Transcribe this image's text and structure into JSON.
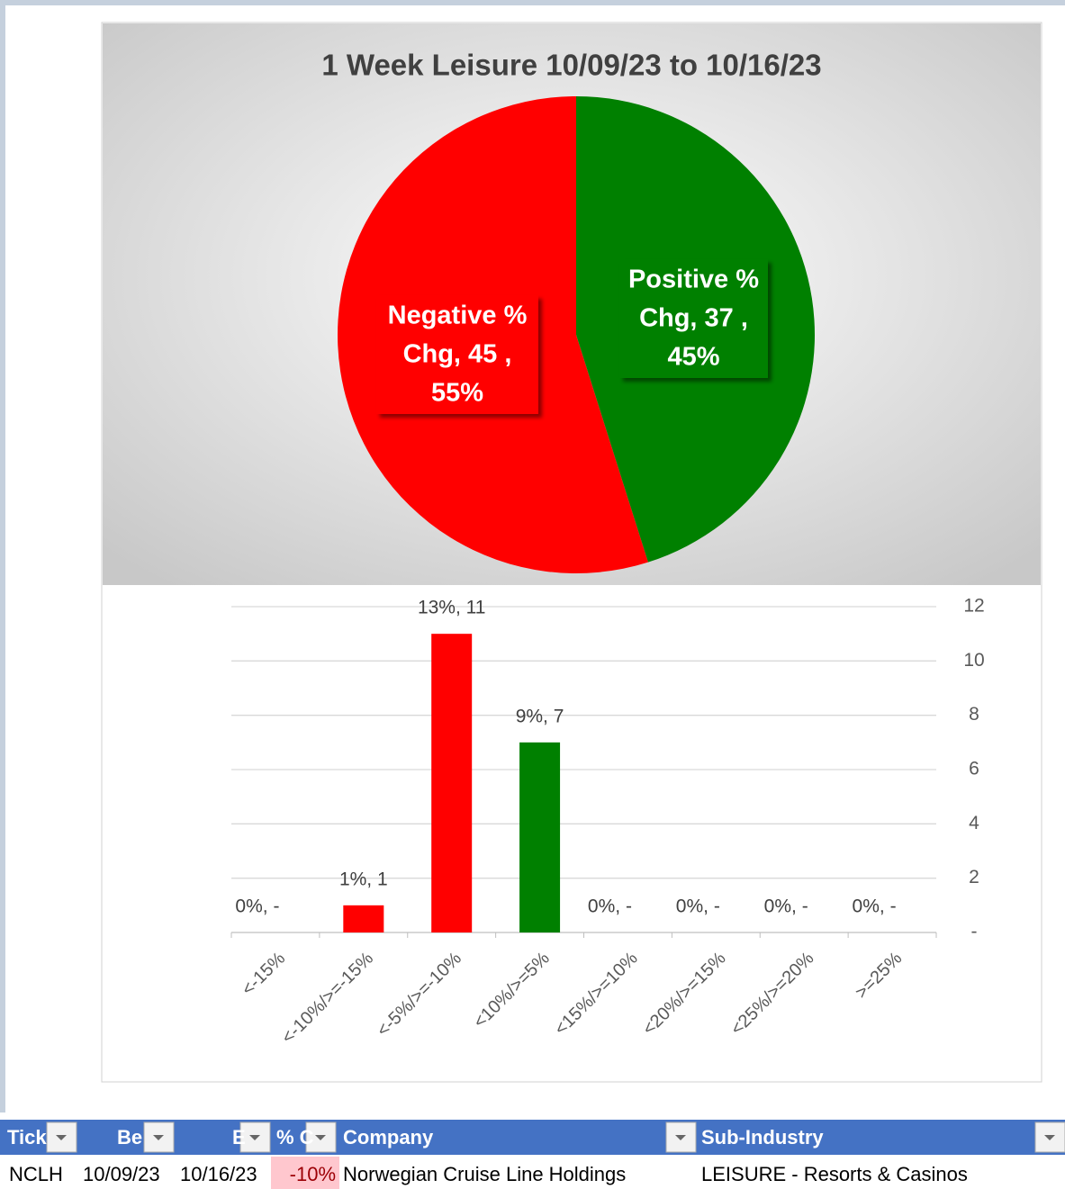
{
  "chart_data": [
    {
      "type": "pie",
      "title": "1 Week Leisure 10/09/23 to 10/16/23",
      "categories": [
        "Negative % Chg",
        "Positive % Chg"
      ],
      "values": [
        45,
        37
      ],
      "colors": [
        "#ff0000",
        "#008000"
      ],
      "data_labels": [
        [
          "Negative %",
          "Chg,  45 ,",
          "55%"
        ],
        [
          "Positive %",
          "Chg,  37 ,",
          "45%"
        ]
      ]
    },
    {
      "type": "bar",
      "categories": [
        "<-15%",
        "<-10%/>=-15%",
        "<-5%/>=-10%",
        "<10%/>=5%",
        "<15%/>=10%",
        "<20%/>=15%",
        "<25%/>=20%",
        ">=25%"
      ],
      "values": [
        0,
        1,
        11,
        7,
        0,
        0,
        0,
        0
      ],
      "value_labels": [
        "0%,  -",
        "1%,  1",
        "13%,  11",
        "9%,  7",
        "0%,  -",
        "0%,  -",
        "0%,  -",
        "0%,  -"
      ],
      "colors": [
        "#ff0000",
        "#ff0000",
        "#ff0000",
        "#008000",
        "#008000",
        "#008000",
        "#008000",
        "#008000"
      ],
      "ylim": [
        0,
        12
      ],
      "yticks": [
        {
          "value": 0,
          "label": "-"
        },
        2,
        4,
        6,
        8,
        10,
        12
      ],
      "grid": true,
      "y_axis_side": "right"
    }
  ],
  "table": {
    "headers": [
      "Tick",
      "Be",
      "E",
      "% C",
      "Company",
      "Sub-Industry"
    ],
    "rows": [
      [
        "NCLH",
        "10/09/23",
        "10/16/23",
        "-10%",
        "Norwegian Cruise Line Holdings",
        "LEISURE - Resorts & Casinos"
      ]
    ]
  }
}
